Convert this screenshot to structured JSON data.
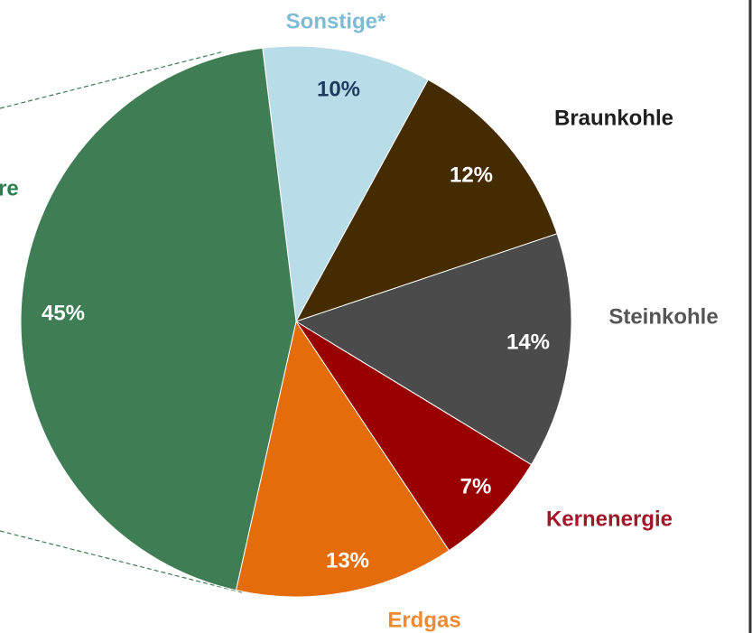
{
  "chart_data": {
    "type": "pie",
    "categories": [
      "Sonstige*",
      "Braunkohle",
      "Steinkohle",
      "Kernenergie",
      "Erdgas",
      "re"
    ],
    "values": [
      10,
      12,
      14,
      7,
      13,
      45
    ],
    "value_labels": [
      "10%",
      "12%",
      "14%",
      "7%",
      "13%",
      "45%"
    ],
    "colors": [
      "#b9dde8",
      "#452b00",
      "#4b4b4b",
      "#990000",
      "#e46c0a",
      "#3f7d54"
    ]
  }
}
